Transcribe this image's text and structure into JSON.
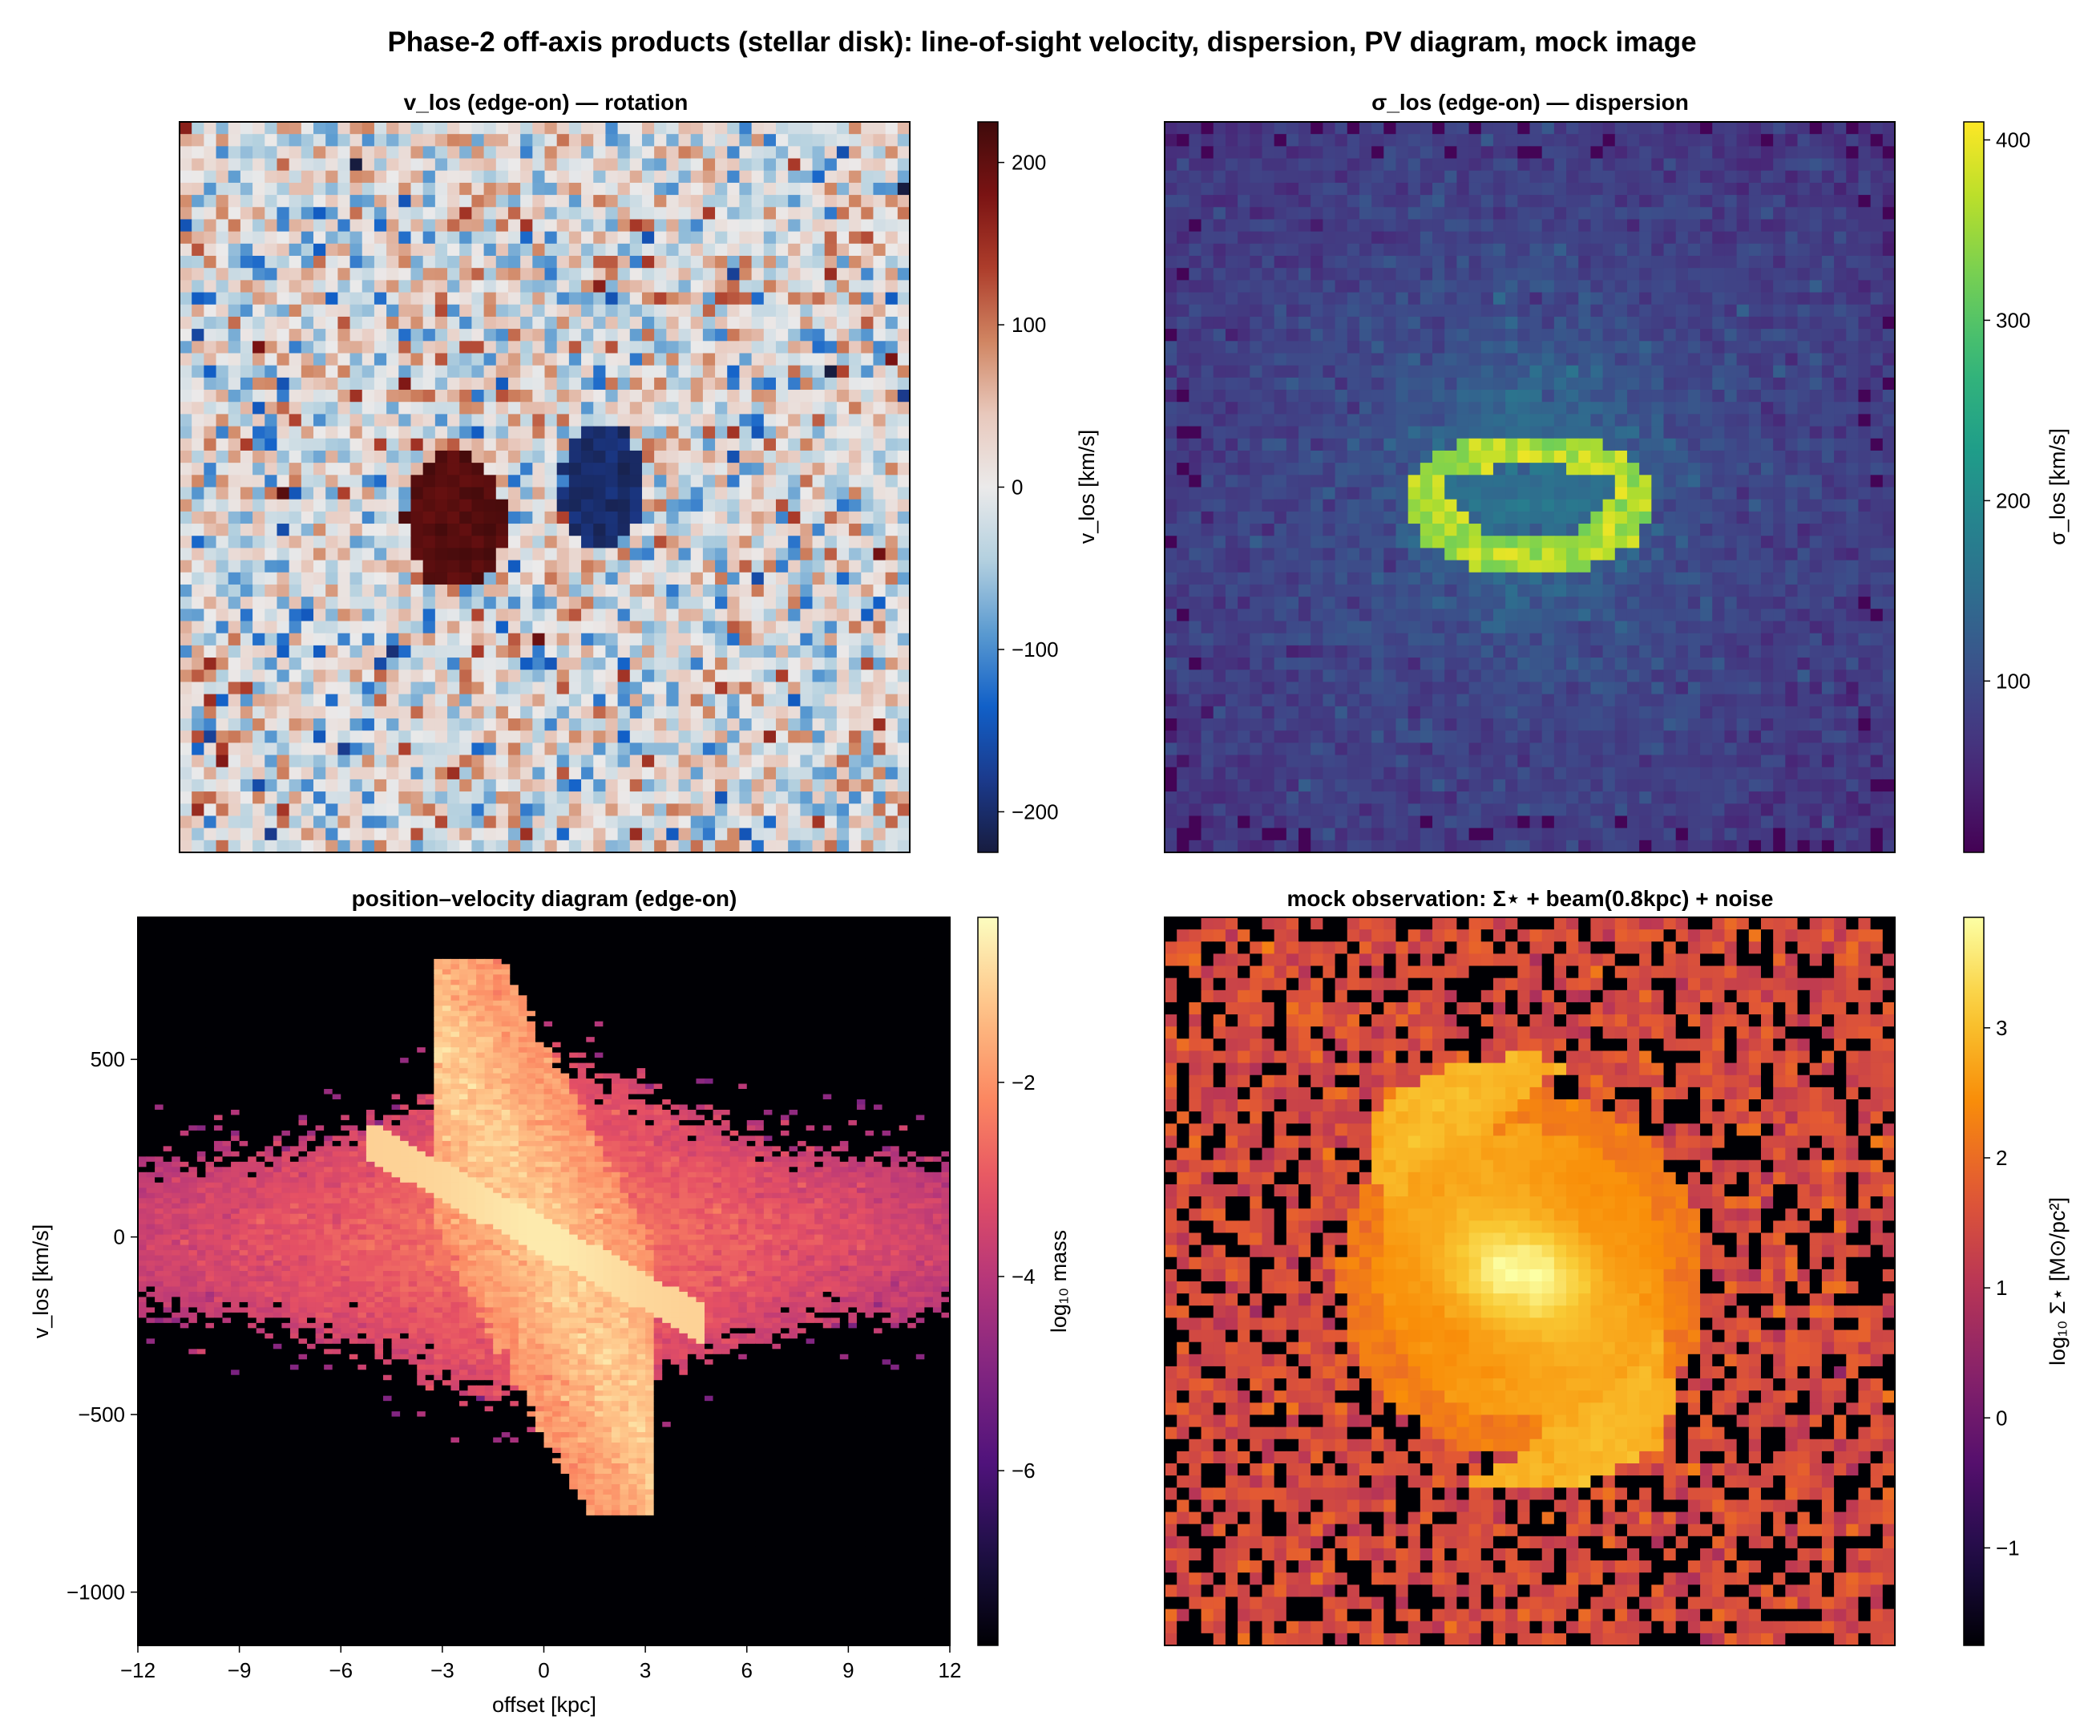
{
  "figure": {
    "title": "Phase-2 off-axis products (stellar disk): line-of-sight velocity, dispersion, PV diagram, mock image"
  },
  "chart_data": [
    {
      "id": "vlos",
      "type": "heatmap",
      "title": "v_los  (edge-on) — rotation",
      "xlabel": "",
      "ylabel": "",
      "grid": false,
      "colormap": "balance",
      "colorbar": {
        "label": "v_los [km/s]",
        "range": [
          -225,
          225
        ],
        "ticks": [
          200,
          100,
          0,
          -100,
          -200
        ],
        "tick_labels": [
          "200",
          "100",
          "0",
          "−100",
          "−200"
        ]
      },
      "grid_cells": 60,
      "features": [
        {
          "name": "approaching-blob",
          "value": 220,
          "center_frac": [
            0.38,
            0.55
          ],
          "extent_frac": [
            0.17,
            0.23
          ]
        },
        {
          "name": "receding-blob",
          "value": -215,
          "center_frac": [
            0.58,
            0.5
          ],
          "extent_frac": [
            0.14,
            0.2
          ]
        }
      ],
      "background_noise_sigma": 60
    },
    {
      "id": "sigma",
      "type": "heatmap",
      "title": "σ_los  (edge-on) — dispersion",
      "xlabel": "",
      "ylabel": "",
      "grid": false,
      "colormap": "viridis",
      "colorbar": {
        "label": "σ_los [km/s]",
        "range": [
          5,
          410
        ],
        "ticks": [
          400,
          300,
          200,
          100
        ],
        "tick_labels": [
          "400",
          "300",
          "200",
          "100"
        ]
      },
      "grid_cells": 60,
      "features": [
        {
          "name": "central-ring",
          "value": 380,
          "center_frac": [
            0.5,
            0.5
          ]
        }
      ],
      "background_value": 90
    },
    {
      "id": "pv",
      "type": "heatmap",
      "title": "position–velocity diagram (edge-on)",
      "xlabel": "offset [kpc]",
      "ylabel": "v_los [km/s]",
      "grid": false,
      "colormap": "magma",
      "xlim": [
        -12,
        12
      ],
      "ylim": [
        -1150,
        900
      ],
      "xticks": [
        -12,
        -9,
        -6,
        -3,
        0,
        3,
        6,
        9,
        12
      ],
      "xtick_labels": [
        "−12",
        "−9",
        "−6",
        "−3",
        "0",
        "3",
        "6",
        "9",
        "12"
      ],
      "yticks": [
        500,
        0,
        -500,
        -1000
      ],
      "ytick_labels": [
        "500",
        "0",
        "−500",
        "−1000"
      ],
      "colorbar": {
        "label": "log₁₀ mass",
        "range": [
          -7.8,
          -0.3
        ],
        "ticks": [
          -2,
          -4,
          -6
        ],
        "tick_labels": [
          "−2",
          "−4",
          "−6"
        ]
      },
      "features": [
        {
          "name": "rotation-diagonal",
          "from": [
            -5,
            260
          ],
          "to": [
            4,
            -260
          ]
        },
        {
          "name": "central-column",
          "x_range": [
            -3,
            3
          ],
          "v_range": [
            -780,
            790
          ]
        }
      ]
    },
    {
      "id": "mock",
      "type": "heatmap",
      "title": "mock observation: Σ⋆ + beam(0.8kpc) + noise",
      "xlabel": "",
      "ylabel": "",
      "grid": false,
      "colormap": "inferno",
      "colorbar": {
        "label": "log₁₀ Σ⋆ [M⊙/pc²]",
        "range": [
          -1.75,
          3.85
        ],
        "ticks": [
          3,
          2,
          1,
          0,
          -1
        ],
        "tick_labels": [
          "3",
          "2",
          "1",
          "0",
          "−1"
        ]
      },
      "grid_cells": 60,
      "features": [
        {
          "name": "bright-center",
          "value": 3.8,
          "center_frac": [
            0.49,
            0.49
          ]
        },
        {
          "name": "spiral-arms",
          "value": 3.0
        }
      ],
      "background_value": 1.5
    }
  ]
}
